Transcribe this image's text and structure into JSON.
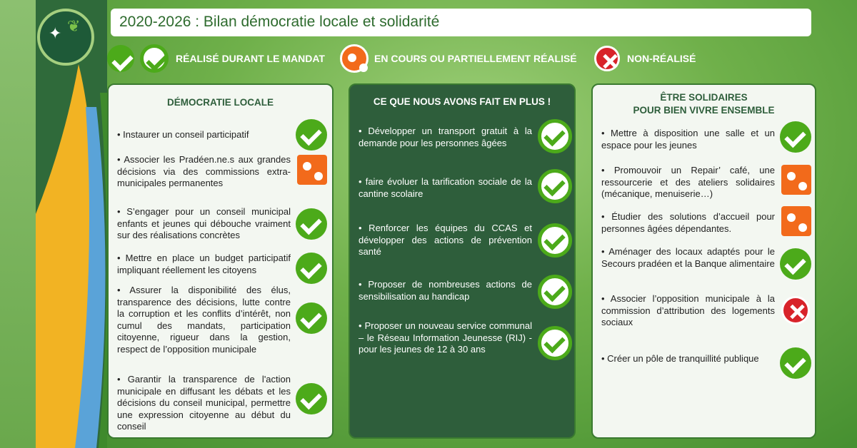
{
  "title": "2020-2026 : Bilan démocratie locale et solidarité",
  "legend": {
    "done": "RÉALISÉ DURANT LE MANDAT",
    "partial": "EN COURS OU PARTIELLEMENT RÉALISÉ",
    "not_done": "NON-RÉALISÉ"
  },
  "colors": {
    "done": "#4caa1a",
    "partial": "#f26a1b",
    "not_done": "#d8232a",
    "middle_panel": "#2e5e3b"
  },
  "columns": [
    {
      "title": "DÉMOCRATIE LOCALE",
      "items": [
        {
          "text": "• Instaurer un conseil participatif",
          "status": "done"
        },
        {
          "text": "• Associer les Pradéen.ne.s aux grandes décisions via des commissions extra-municipales permanentes",
          "status": "partial"
        },
        {
          "text": "• S’engager pour un conseil municipal enfants et jeunes qui débouche vraiment sur des réalisations concrètes",
          "status": "done"
        },
        {
          "text": "• Mettre en place un budget participatif impliquant réellement les citoyens",
          "status": "done"
        },
        {
          "text": "• Assurer la disponibilité des élus, transparence des décisions, lutte contre la corruption et les conflits d’intérêt, non cumul des mandats, participation citoyenne, rigueur dans la gestion, respect de l’opposition municipale",
          "status": "done"
        },
        {
          "text": "• Garantir la transparence de l'action municipale en diffusant les débats et les décisions du conseil municipal, permettre une expression citoyenne au début du conseil",
          "status": "done"
        }
      ]
    },
    {
      "title": "CE QUE NOUS AVONS FAIT EN PLUS !",
      "items": [
        {
          "text": "• Développer un transport gratuit à la demande pour les personnes âgées",
          "status": "done"
        },
        {
          "text": "• faire évoluer la tarification sociale de la cantine scolaire",
          "status": "done"
        },
        {
          "text": "• Renforcer les équipes du CCAS et développer des actions de prévention santé",
          "status": "done"
        },
        {
          "text": "• Proposer de nombreuses actions de sensibilisation au handicap",
          "status": "done"
        },
        {
          "text": "• Proposer un nouveau service communal – le Réseau Information Jeunesse (RIJ) - pour les jeunes de 12 à 30 ans",
          "status": "done"
        }
      ]
    },
    {
      "title": "ÊTRE SOLIDAIRES",
      "title2": "POUR BIEN VIVRE ENSEMBLE",
      "items": [
        {
          "text": "• Mettre à disposition une salle et un espace pour les jeunes",
          "status": "done"
        },
        {
          "text": "• Promouvoir un Repair’ café, une ressourcerie et des ateliers solidaires (mécanique, menuiserie…)",
          "status": "partial"
        },
        {
          "text": "• Étudier des solutions d’accueil pour personnes âgées dépendantes.",
          "status": "partial"
        },
        {
          "text": "• Aménager des locaux adaptés pour le Secours pradéen et la Banque alimentaire",
          "status": "done"
        },
        {
          "text": "• Associer l’opposition municipale à la commission d’attribution des logements sociaux",
          "status": "not_done"
        },
        {
          "text": "• Créer un pôle de tranquillité publique",
          "status": "done"
        }
      ]
    }
  ]
}
